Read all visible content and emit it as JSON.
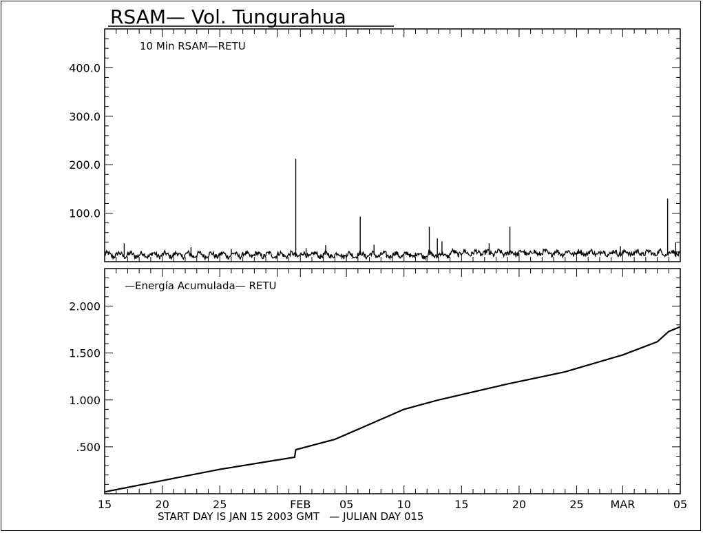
{
  "title": "RSAM— Vol. Tungurahua",
  "footer": "START DAY IS JAN 15 2003 GMT   — JULIAN DAY 015",
  "x_tick_labels": [
    "15",
    "20",
    "25",
    "FEB",
    "05",
    "10",
    "15",
    "20",
    "25",
    "MAR",
    "05"
  ],
  "chart_data": [
    {
      "type": "line",
      "title": "10 Min RSAM—RETU",
      "x_unit": "days since JAN 15 2003",
      "xlim": [
        0,
        50
      ],
      "ylim": [
        0,
        480
      ],
      "yticks": [
        {
          "value": 100,
          "label": "100.0"
        },
        {
          "value": 200,
          "label": "200.0"
        },
        {
          "value": 300,
          "label": "300.0"
        },
        {
          "value": 400,
          "label": "400.0"
        }
      ],
      "baseline": 14,
      "spikes": [
        {
          "x": 1.7,
          "y": 38
        },
        {
          "x": 7.5,
          "y": 30
        },
        {
          "x": 11.0,
          "y": 26
        },
        {
          "x": 16.6,
          "y": 212
        },
        {
          "x": 17.5,
          "y": 28
        },
        {
          "x": 19.2,
          "y": 34
        },
        {
          "x": 22.2,
          "y": 93
        },
        {
          "x": 23.4,
          "y": 35
        },
        {
          "x": 28.2,
          "y": 72
        },
        {
          "x": 28.9,
          "y": 48
        },
        {
          "x": 29.3,
          "y": 42
        },
        {
          "x": 33.4,
          "y": 38
        },
        {
          "x": 35.2,
          "y": 72
        },
        {
          "x": 44.8,
          "y": 32
        },
        {
          "x": 48.9,
          "y": 130
        },
        {
          "x": 49.6,
          "y": 40
        }
      ]
    },
    {
      "type": "line",
      "title": "—Energía Acumulada— RETU",
      "x_unit": "days since JAN 15 2003",
      "xlim": [
        0,
        50
      ],
      "ylim": [
        0,
        2.4
      ],
      "yticks": [
        {
          "value": 0.5,
          "label": ".500"
        },
        {
          "value": 1.0,
          "label": "1.000"
        },
        {
          "value": 1.5,
          "label": "1.500"
        },
        {
          "value": 2.0,
          "label": "2.000"
        }
      ],
      "x": [
        0,
        5,
        10,
        15,
        16.5,
        16.6,
        20,
        23,
        26,
        29,
        35,
        40,
        45,
        48,
        49,
        50
      ],
      "y": [
        0.02,
        0.14,
        0.26,
        0.36,
        0.39,
        0.47,
        0.58,
        0.74,
        0.9,
        1.0,
        1.17,
        1.3,
        1.48,
        1.62,
        1.73,
        1.78
      ]
    }
  ]
}
